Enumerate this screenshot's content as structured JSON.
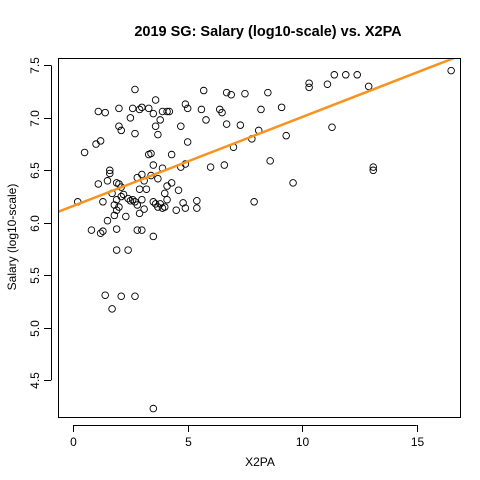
{
  "chart_data": {
    "type": "scatter",
    "title": "2019 SG: Salary (log10-scale) vs. X2PA",
    "xlabel": "X2PA",
    "ylabel": "Salary (log10-scale)",
    "xlim": [
      -0.66,
      16.93
    ],
    "ylim": [
      4.14,
      7.57
    ],
    "x_ticks": [
      0,
      5,
      10,
      15
    ],
    "y_ticks": [
      4.5,
      5.0,
      5.5,
      6.0,
      6.5,
      7.0,
      7.5
    ],
    "x_tick_labels": [
      "0",
      "5",
      "10",
      "15"
    ],
    "y_tick_labels": [
      "4.5",
      "5.0",
      "5.5",
      "6.0",
      "6.5",
      "7.0",
      "7.5"
    ],
    "grid": false,
    "legend": "none",
    "regression_line": {
      "intercept": 6.16,
      "slope": 0.0848,
      "color": "#f7931e"
    },
    "point_color": "#000000",
    "points": [
      [
        0.2,
        6.2
      ],
      [
        0.5,
        6.67
      ],
      [
        0.8,
        5.93
      ],
      [
        1.0,
        6.75
      ],
      [
        1.1,
        7.06
      ],
      [
        1.1,
        6.37
      ],
      [
        1.2,
        6.78
      ],
      [
        1.2,
        5.9
      ],
      [
        1.3,
        6.2
      ],
      [
        1.3,
        5.92
      ],
      [
        1.4,
        7.05
      ],
      [
        1.4,
        5.31
      ],
      [
        1.5,
        6.4
      ],
      [
        1.5,
        6.02
      ],
      [
        1.6,
        6.5
      ],
      [
        1.6,
        6.47
      ],
      [
        1.7,
        5.18
      ],
      [
        1.7,
        6.28
      ],
      [
        1.8,
        6.17
      ],
      [
        1.8,
        6.07
      ],
      [
        1.9,
        6.38
      ],
      [
        1.9,
        6.22
      ],
      [
        1.9,
        6.12
      ],
      [
        1.9,
        5.94
      ],
      [
        1.9,
        5.74
      ],
      [
        2.0,
        6.37
      ],
      [
        2.0,
        6.15
      ],
      [
        2.0,
        7.09
      ],
      [
        2.0,
        6.92
      ],
      [
        2.1,
        6.88
      ],
      [
        2.1,
        6.34
      ],
      [
        2.1,
        6.25
      ],
      [
        2.1,
        5.3
      ],
      [
        2.2,
        6.27
      ],
      [
        2.3,
        6.06
      ],
      [
        2.4,
        6.23
      ],
      [
        2.4,
        5.74
      ],
      [
        2.5,
        7.0
      ],
      [
        2.5,
        6.21
      ],
      [
        2.6,
        6.22
      ],
      [
        2.6,
        7.09
      ],
      [
        2.7,
        7.27
      ],
      [
        2.7,
        6.85
      ],
      [
        2.7,
        5.3
      ],
      [
        2.7,
        6.2
      ],
      [
        2.8,
        6.43
      ],
      [
        2.8,
        5.93
      ],
      [
        2.8,
        6.17
      ],
      [
        2.9,
        7.08
      ],
      [
        2.9,
        6.32
      ],
      [
        2.9,
        6.09
      ],
      [
        3.0,
        7.1
      ],
      [
        3.0,
        6.46
      ],
      [
        3.0,
        6.22
      ],
      [
        3.0,
        5.93
      ],
      [
        3.1,
        6.4
      ],
      [
        3.1,
        6.13
      ],
      [
        3.2,
        6.32
      ],
      [
        3.3,
        7.09
      ],
      [
        3.3,
        6.65
      ],
      [
        3.4,
        6.66
      ],
      [
        3.4,
        6.45
      ],
      [
        3.5,
        7.04
      ],
      [
        3.5,
        6.55
      ],
      [
        3.5,
        6.2
      ],
      [
        3.5,
        5.87
      ],
      [
        3.5,
        4.23
      ],
      [
        3.6,
        7.17
      ],
      [
        3.6,
        6.92
      ],
      [
        3.6,
        6.18
      ],
      [
        3.7,
        6.84
      ],
      [
        3.7,
        6.42
      ],
      [
        3.7,
        6.15
      ],
      [
        3.8,
        6.98
      ],
      [
        3.8,
        6.18
      ],
      [
        3.9,
        7.06
      ],
      [
        3.9,
        6.52
      ],
      [
        3.9,
        6.14
      ],
      [
        4.0,
        6.28
      ],
      [
        4.0,
        6.15
      ],
      [
        4.1,
        7.06
      ],
      [
        4.1,
        6.35
      ],
      [
        4.1,
        6.22
      ],
      [
        4.2,
        7.06
      ],
      [
        4.3,
        6.65
      ],
      [
        4.3,
        6.38
      ],
      [
        4.5,
        6.12
      ],
      [
        4.6,
        6.31
      ],
      [
        4.7,
        6.92
      ],
      [
        4.7,
        6.53
      ],
      [
        4.8,
        6.19
      ],
      [
        4.9,
        7.13
      ],
      [
        4.9,
        6.56
      ],
      [
        4.9,
        6.14
      ],
      [
        5.0,
        6.77
      ],
      [
        5.0,
        7.09
      ],
      [
        5.4,
        6.21
      ],
      [
        5.4,
        6.14
      ],
      [
        5.6,
        7.08
      ],
      [
        5.7,
        7.26
      ],
      [
        5.8,
        6.98
      ],
      [
        6.0,
        6.53
      ],
      [
        6.4,
        7.08
      ],
      [
        6.5,
        7.05
      ],
      [
        6.6,
        6.55
      ],
      [
        6.7,
        6.94
      ],
      [
        6.7,
        7.24
      ],
      [
        6.9,
        7.22
      ],
      [
        7.0,
        6.72
      ],
      [
        7.3,
        6.93
      ],
      [
        7.5,
        7.23
      ],
      [
        7.8,
        6.8
      ],
      [
        7.9,
        6.2
      ],
      [
        8.1,
        6.88
      ],
      [
        8.2,
        7.08
      ],
      [
        8.5,
        7.24
      ],
      [
        8.6,
        6.59
      ],
      [
        9.1,
        7.1
      ],
      [
        9.3,
        6.83
      ],
      [
        9.6,
        6.38
      ],
      [
        10.3,
        7.33
      ],
      [
        10.3,
        7.29
      ],
      [
        11.1,
        7.32
      ],
      [
        11.3,
        6.91
      ],
      [
        11.4,
        7.41
      ],
      [
        11.9,
        7.41
      ],
      [
        12.4,
        7.41
      ],
      [
        12.9,
        7.3
      ],
      [
        13.1,
        6.53
      ],
      [
        13.1,
        6.5
      ],
      [
        16.5,
        7.45
      ]
    ]
  }
}
